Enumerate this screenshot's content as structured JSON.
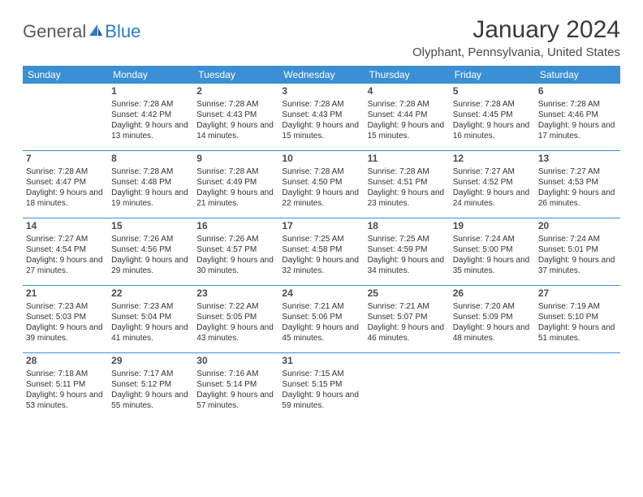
{
  "logo": {
    "part1": "General",
    "part2": "Blue"
  },
  "title": "January 2024",
  "location": "Olyphant, Pennsylvania, United States",
  "colors": {
    "header_bg": "#3b8fd4",
    "header_text": "#ffffff",
    "text": "#333333",
    "row_border": "#3b8fd4",
    "logo_gray": "#5a5a5a",
    "logo_blue": "#2b7cc4",
    "background": "#ffffff"
  },
  "days_of_week": [
    "Sunday",
    "Monday",
    "Tuesday",
    "Wednesday",
    "Thursday",
    "Friday",
    "Saturday"
  ],
  "weeks": [
    [
      {
        "num": "",
        "sunrise": "",
        "sunset": "",
        "daylight": ""
      },
      {
        "num": "1",
        "sunrise": "Sunrise: 7:28 AM",
        "sunset": "Sunset: 4:42 PM",
        "daylight": "Daylight: 9 hours and 13 minutes."
      },
      {
        "num": "2",
        "sunrise": "Sunrise: 7:28 AM",
        "sunset": "Sunset: 4:43 PM",
        "daylight": "Daylight: 9 hours and 14 minutes."
      },
      {
        "num": "3",
        "sunrise": "Sunrise: 7:28 AM",
        "sunset": "Sunset: 4:43 PM",
        "daylight": "Daylight: 9 hours and 15 minutes."
      },
      {
        "num": "4",
        "sunrise": "Sunrise: 7:28 AM",
        "sunset": "Sunset: 4:44 PM",
        "daylight": "Daylight: 9 hours and 15 minutes."
      },
      {
        "num": "5",
        "sunrise": "Sunrise: 7:28 AM",
        "sunset": "Sunset: 4:45 PM",
        "daylight": "Daylight: 9 hours and 16 minutes."
      },
      {
        "num": "6",
        "sunrise": "Sunrise: 7:28 AM",
        "sunset": "Sunset: 4:46 PM",
        "daylight": "Daylight: 9 hours and 17 minutes."
      }
    ],
    [
      {
        "num": "7",
        "sunrise": "Sunrise: 7:28 AM",
        "sunset": "Sunset: 4:47 PM",
        "daylight": "Daylight: 9 hours and 18 minutes."
      },
      {
        "num": "8",
        "sunrise": "Sunrise: 7:28 AM",
        "sunset": "Sunset: 4:48 PM",
        "daylight": "Daylight: 9 hours and 19 minutes."
      },
      {
        "num": "9",
        "sunrise": "Sunrise: 7:28 AM",
        "sunset": "Sunset: 4:49 PM",
        "daylight": "Daylight: 9 hours and 21 minutes."
      },
      {
        "num": "10",
        "sunrise": "Sunrise: 7:28 AM",
        "sunset": "Sunset: 4:50 PM",
        "daylight": "Daylight: 9 hours and 22 minutes."
      },
      {
        "num": "11",
        "sunrise": "Sunrise: 7:28 AM",
        "sunset": "Sunset: 4:51 PM",
        "daylight": "Daylight: 9 hours and 23 minutes."
      },
      {
        "num": "12",
        "sunrise": "Sunrise: 7:27 AM",
        "sunset": "Sunset: 4:52 PM",
        "daylight": "Daylight: 9 hours and 24 minutes."
      },
      {
        "num": "13",
        "sunrise": "Sunrise: 7:27 AM",
        "sunset": "Sunset: 4:53 PM",
        "daylight": "Daylight: 9 hours and 26 minutes."
      }
    ],
    [
      {
        "num": "14",
        "sunrise": "Sunrise: 7:27 AM",
        "sunset": "Sunset: 4:54 PM",
        "daylight": "Daylight: 9 hours and 27 minutes."
      },
      {
        "num": "15",
        "sunrise": "Sunrise: 7:26 AM",
        "sunset": "Sunset: 4:56 PM",
        "daylight": "Daylight: 9 hours and 29 minutes."
      },
      {
        "num": "16",
        "sunrise": "Sunrise: 7:26 AM",
        "sunset": "Sunset: 4:57 PM",
        "daylight": "Daylight: 9 hours and 30 minutes."
      },
      {
        "num": "17",
        "sunrise": "Sunrise: 7:25 AM",
        "sunset": "Sunset: 4:58 PM",
        "daylight": "Daylight: 9 hours and 32 minutes."
      },
      {
        "num": "18",
        "sunrise": "Sunrise: 7:25 AM",
        "sunset": "Sunset: 4:59 PM",
        "daylight": "Daylight: 9 hours and 34 minutes."
      },
      {
        "num": "19",
        "sunrise": "Sunrise: 7:24 AM",
        "sunset": "Sunset: 5:00 PM",
        "daylight": "Daylight: 9 hours and 35 minutes."
      },
      {
        "num": "20",
        "sunrise": "Sunrise: 7:24 AM",
        "sunset": "Sunset: 5:01 PM",
        "daylight": "Daylight: 9 hours and 37 minutes."
      }
    ],
    [
      {
        "num": "21",
        "sunrise": "Sunrise: 7:23 AM",
        "sunset": "Sunset: 5:03 PM",
        "daylight": "Daylight: 9 hours and 39 minutes."
      },
      {
        "num": "22",
        "sunrise": "Sunrise: 7:23 AM",
        "sunset": "Sunset: 5:04 PM",
        "daylight": "Daylight: 9 hours and 41 minutes."
      },
      {
        "num": "23",
        "sunrise": "Sunrise: 7:22 AM",
        "sunset": "Sunset: 5:05 PM",
        "daylight": "Daylight: 9 hours and 43 minutes."
      },
      {
        "num": "24",
        "sunrise": "Sunrise: 7:21 AM",
        "sunset": "Sunset: 5:06 PM",
        "daylight": "Daylight: 9 hours and 45 minutes."
      },
      {
        "num": "25",
        "sunrise": "Sunrise: 7:21 AM",
        "sunset": "Sunset: 5:07 PM",
        "daylight": "Daylight: 9 hours and 46 minutes."
      },
      {
        "num": "26",
        "sunrise": "Sunrise: 7:20 AM",
        "sunset": "Sunset: 5:09 PM",
        "daylight": "Daylight: 9 hours and 48 minutes."
      },
      {
        "num": "27",
        "sunrise": "Sunrise: 7:19 AM",
        "sunset": "Sunset: 5:10 PM",
        "daylight": "Daylight: 9 hours and 51 minutes."
      }
    ],
    [
      {
        "num": "28",
        "sunrise": "Sunrise: 7:18 AM",
        "sunset": "Sunset: 5:11 PM",
        "daylight": "Daylight: 9 hours and 53 minutes."
      },
      {
        "num": "29",
        "sunrise": "Sunrise: 7:17 AM",
        "sunset": "Sunset: 5:12 PM",
        "daylight": "Daylight: 9 hours and 55 minutes."
      },
      {
        "num": "30",
        "sunrise": "Sunrise: 7:16 AM",
        "sunset": "Sunset: 5:14 PM",
        "daylight": "Daylight: 9 hours and 57 minutes."
      },
      {
        "num": "31",
        "sunrise": "Sunrise: 7:15 AM",
        "sunset": "Sunset: 5:15 PM",
        "daylight": "Daylight: 9 hours and 59 minutes."
      },
      {
        "num": "",
        "sunrise": "",
        "sunset": "",
        "daylight": ""
      },
      {
        "num": "",
        "sunrise": "",
        "sunset": "",
        "daylight": ""
      },
      {
        "num": "",
        "sunrise": "",
        "sunset": "",
        "daylight": ""
      }
    ]
  ]
}
